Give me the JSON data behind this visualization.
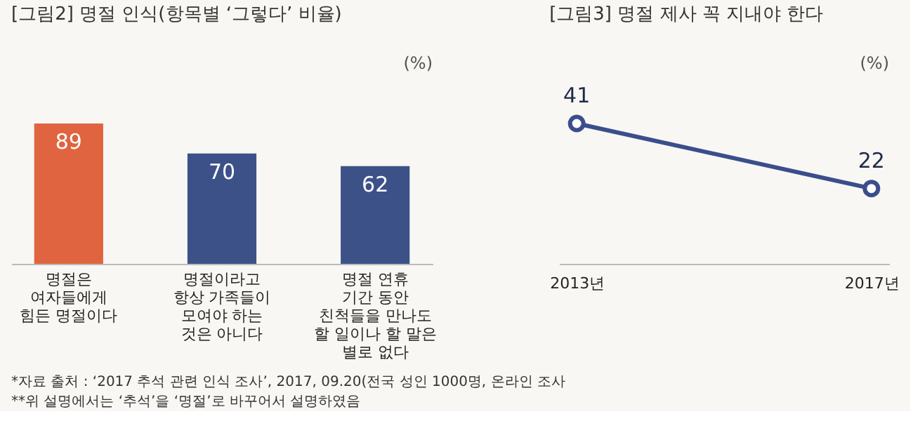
{
  "chart_data": [
    {
      "type": "bar",
      "title": "[그림2] 명절 인식(항목별 ‘그렇다’ 비율)",
      "ylabel": "(%)",
      "categories": [
        "명절은\n여자들에게\n힘든 명절이다",
        "명절이라고\n항상 가족들이\n모여야 하는\n것은 아니다",
        "명절 연휴\n기간 동안\n친척들을 만나도\n할 일이나 할 말은\n별로 없다"
      ],
      "values": [
        89,
        70,
        62
      ],
      "colors": [
        "#e0643f",
        "#3d5189",
        "#3d5189"
      ],
      "data_labels": true,
      "grid": false,
      "annotations": [
        "*자료 출처 : ‘2017 추석 관련 인식 조사’, 2017, 09.20(전국 성인 1000명, 온라인 조사",
        "**위 설명에서는 ‘추석’을 ‘명절’로 바꾸어서 설명하였음"
      ]
    },
    {
      "type": "line",
      "title": "[그림3] 명절 제사 꼭 지내야 한다",
      "ylabel": "(%)",
      "categories": [
        "2013년",
        "2017년"
      ],
      "series": [
        {
          "color": "#3a4e8c",
          "values": [
            41,
            22
          ]
        }
      ],
      "data_labels": true,
      "marker": "circle",
      "line_style": "solid",
      "grid": false
    }
  ]
}
